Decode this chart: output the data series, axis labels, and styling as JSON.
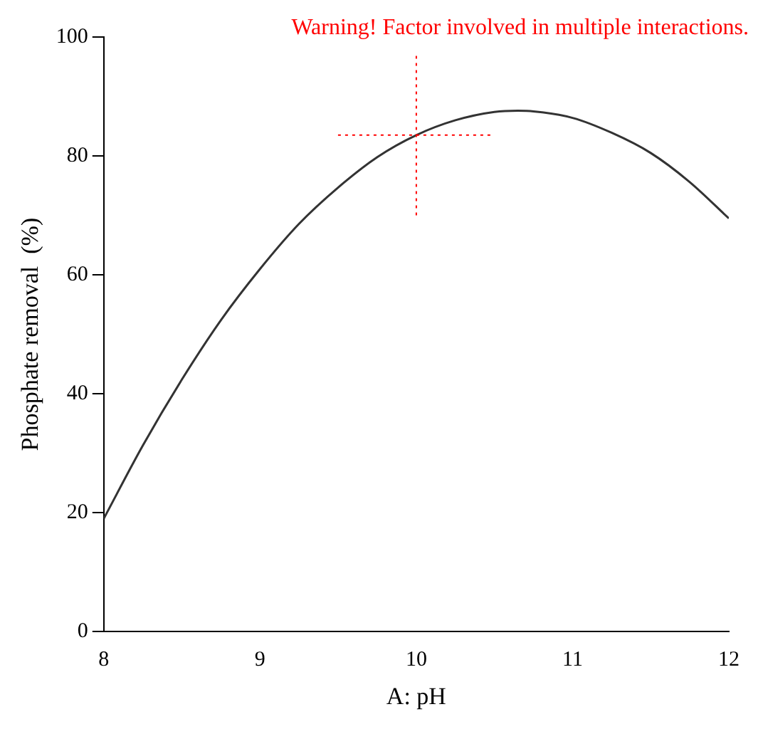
{
  "chart_data": {
    "type": "line",
    "xlabel": "A: pH",
    "ylabel": "Phosphate removal  (%)",
    "annotations": [
      "Warning! Factor involved in multiple interactions."
    ],
    "x": [
      8,
      8.25,
      8.5,
      8.75,
      9,
      9.25,
      9.5,
      9.75,
      10,
      10.25,
      10.5,
      10.65,
      10.75,
      11,
      11.25,
      11.5,
      11.75,
      12
    ],
    "series": [
      {
        "color": "#333333",
        "values": [
          19,
          31.3,
          42.4,
          52.4,
          61,
          68.6,
          74.7,
          79.8,
          83.5,
          86.0,
          87.4,
          87.6,
          87.5,
          86.4,
          83.9,
          80.5,
          75.6,
          69.5
        ]
      }
    ],
    "xlim": [
      8,
      12
    ],
    "ylim": [
      0,
      100
    ],
    "xticks": [
      8,
      9,
      10,
      11,
      12
    ],
    "yticks": [
      0,
      20,
      40,
      60,
      80,
      100
    ],
    "ref_lines": [
      {
        "axis": "x",
        "value": 10,
        "color": "#ff0000",
        "line_style": "dotted"
      },
      {
        "axis": "y",
        "value": 83.5,
        "color": "#ff0000",
        "line_style": "dotted"
      }
    ],
    "grid": false,
    "legend": false,
    "marker": "none",
    "line_style": "solid"
  }
}
